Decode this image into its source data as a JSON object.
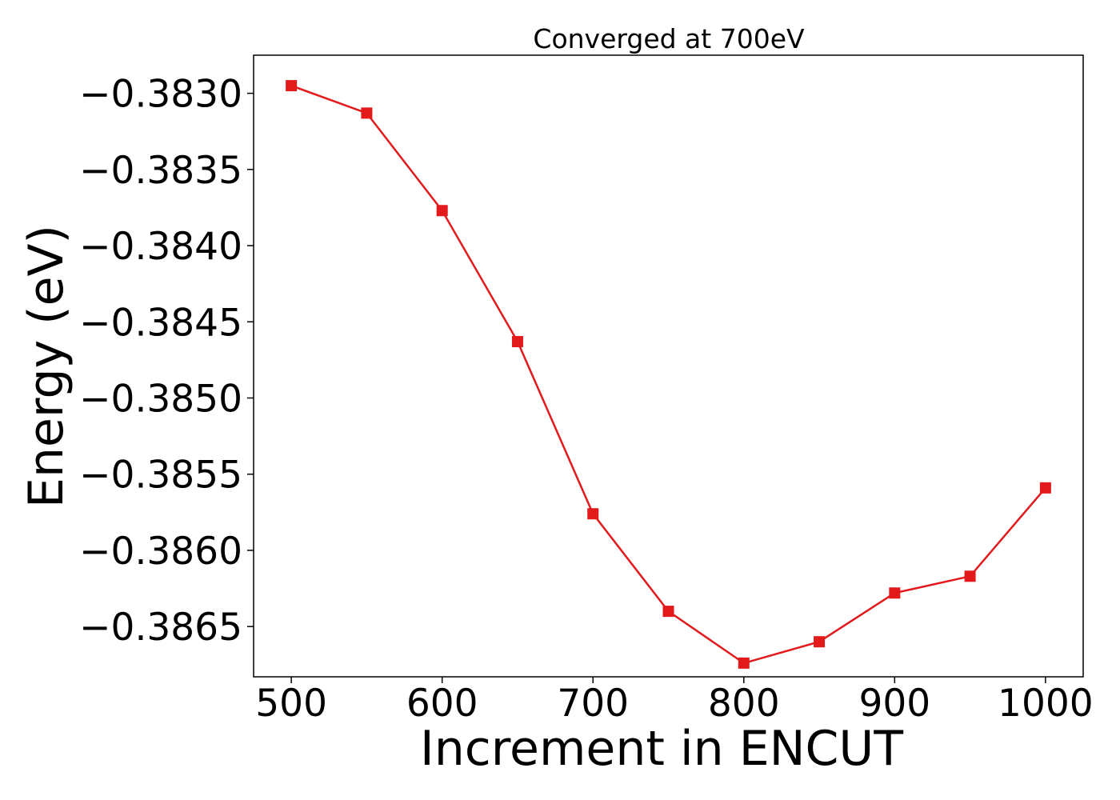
{
  "chart_data": {
    "type": "line",
    "title": "Converged at 700eV",
    "xlabel": "Increment in ENCUT",
    "ylabel": "Energy (eV)",
    "xlim": [
      475,
      1025
    ],
    "ylim": [
      -0.38683,
      -0.38275
    ],
    "xticks": [
      500,
      600,
      700,
      800,
      900,
      1000
    ],
    "xtick_labels": [
      "500",
      "600",
      "700",
      "800",
      "900",
      "1000"
    ],
    "yticks": [
      -0.383,
      -0.3835,
      -0.384,
      -0.3845,
      -0.385,
      -0.3855,
      -0.386,
      -0.3865
    ],
    "ytick_labels": [
      "−0.3830",
      "−0.3835",
      "−0.3840",
      "−0.3845",
      "−0.3850",
      "−0.3855",
      "−0.3860",
      "−0.3865"
    ],
    "grid": false,
    "series": [
      {
        "color": "#e31a1c",
        "marker": "square",
        "x": [
          500,
          550,
          600,
          650,
          700,
          750,
          800,
          850,
          900,
          950,
          1000
        ],
        "y": [
          -0.38295,
          -0.38313,
          -0.38377,
          -0.38463,
          -0.38576,
          -0.3864,
          -0.38674,
          -0.3866,
          -0.38628,
          -0.38617,
          -0.38559
        ]
      }
    ]
  }
}
